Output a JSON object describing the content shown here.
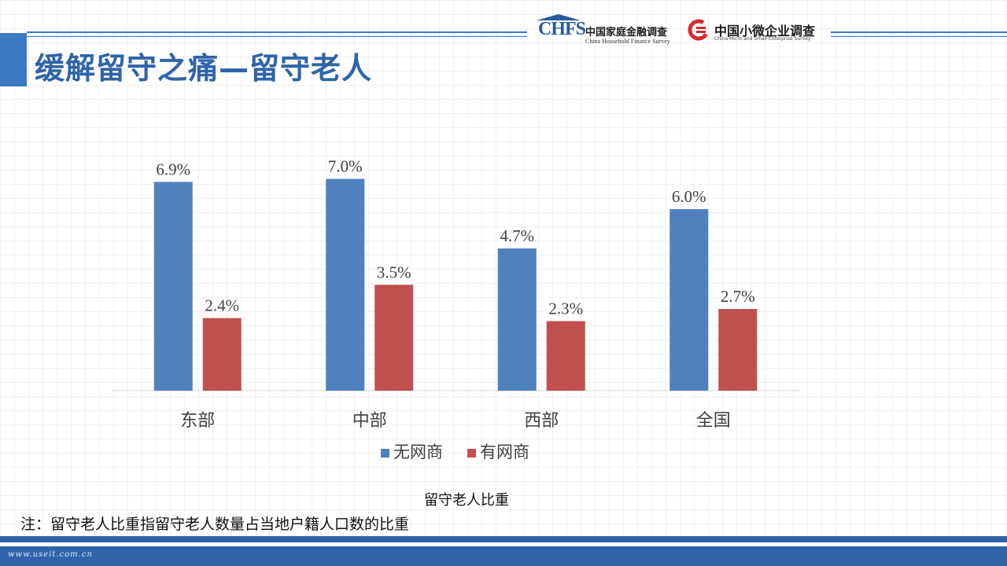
{
  "slide": {
    "title": "缓解留守之痛—留守老人",
    "caption": "留守老人比重",
    "note": "注：留守老人比重指留守老人数量占当地户籍人口数的比重",
    "watermark": "www.useit.com.cn"
  },
  "logos": {
    "chfs": {
      "mark": "CHFS",
      "name_cn": "中国家庭金融调查",
      "name_en": "China Household Finance Survey"
    },
    "sme": {
      "name_cn": "中国小微企业调查",
      "name_en": "China Micro and Small Enterprise Survey"
    }
  },
  "colors": {
    "accent": "#3d78c2",
    "title": "#2f64a8",
    "series_no_online": "#4f81bd",
    "series_online": "#c0504d",
    "sme_logo": "#d72c2c"
  },
  "chart_data": {
    "type": "bar",
    "title": "",
    "xlabel": "",
    "ylabel": "",
    "categories": [
      "东部",
      "中部",
      "西部",
      "全国"
    ],
    "series": [
      {
        "name": "无网商",
        "values": [
          6.9,
          7.0,
          4.7,
          6.0
        ],
        "labels": [
          "6.9%",
          "7.0%",
          "4.7%",
          "6.0%"
        ],
        "color": "#4f81bd"
      },
      {
        "name": "有网商",
        "values": [
          2.4,
          3.5,
          2.3,
          2.7
        ],
        "labels": [
          "2.4%",
          "3.5%",
          "2.3%",
          "2.7%"
        ],
        "color": "#c0504d"
      }
    ],
    "ylim": [
      0,
      7.3
    ],
    "value_axis_shown": false,
    "grid": false,
    "data_labels": true,
    "legend_position": "bottom"
  }
}
